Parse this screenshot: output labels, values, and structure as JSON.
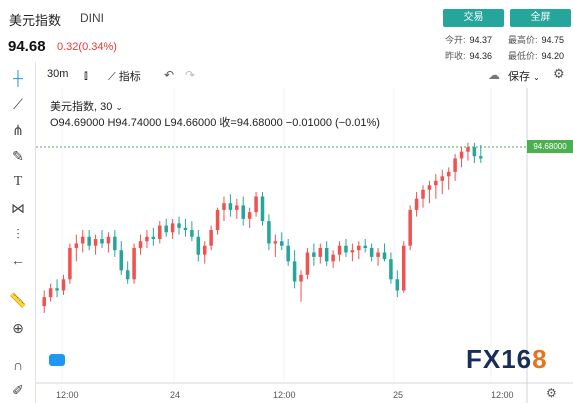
{
  "header": {
    "name": "美元指数",
    "code": "DINI",
    "price": "94.68",
    "change": "0.32(0.34%)",
    "trade_label": "交易",
    "fullscreen_label": "全屏",
    "stats": [
      {
        "label": "今开:",
        "value": "94.37"
      },
      {
        "label": "最高价:",
        "value": "94.75"
      },
      {
        "label": "昨收:",
        "value": "94.36"
      },
      {
        "label": "最低价:",
        "value": "94.20"
      }
    ]
  },
  "toolbar": {
    "interval": "30m",
    "indicator_label": "指标",
    "save_label": "保存"
  },
  "legend": {
    "title": "美元指数, 30",
    "ohlc": "O94.69000  H94.74000  L94.66000  收=94.68000  −0.01000 (−0.01%)"
  },
  "last_price_tag": "94.68000",
  "watermark": {
    "text_main": "FX16",
    "text_accent": "8"
  },
  "xaxis_labels": [
    "12:00",
    "24",
    "12:00",
    "25",
    "12:00"
  ],
  "colors": {
    "up": "#ef5350",
    "down": "#26a69a",
    "accent": "#26a69a",
    "price_line": "#4caf50"
  },
  "chart_data": {
    "type": "candlestick",
    "interval": "30m",
    "ylim": [
      93.9,
      94.95
    ],
    "x_ticks": [
      "12:00",
      "24",
      "12:00",
      "25",
      "12:00"
    ],
    "candles": [
      [
        94.02,
        94.09,
        93.99,
        94.06
      ],
      [
        94.06,
        94.12,
        94.04,
        94.1
      ],
      [
        94.1,
        94.14,
        94.06,
        94.09
      ],
      [
        94.09,
        94.16,
        94.07,
        94.14
      ],
      [
        94.14,
        94.3,
        94.12,
        94.28
      ],
      [
        94.28,
        94.34,
        94.22,
        94.3
      ],
      [
        94.3,
        94.36,
        94.26,
        94.33
      ],
      [
        94.33,
        94.36,
        94.27,
        94.29
      ],
      [
        94.29,
        94.34,
        94.25,
        94.32
      ],
      [
        94.32,
        94.36,
        94.28,
        94.3
      ],
      [
        94.3,
        94.35,
        94.26,
        94.33
      ],
      [
        94.33,
        94.36,
        94.24,
        94.27
      ],
      [
        94.27,
        94.31,
        94.16,
        94.18
      ],
      [
        94.18,
        94.22,
        94.12,
        94.14
      ],
      [
        94.14,
        94.3,
        94.12,
        94.28
      ],
      [
        94.28,
        94.34,
        94.25,
        94.31
      ],
      [
        94.31,
        94.36,
        94.28,
        94.33
      ],
      [
        94.33,
        94.37,
        94.29,
        94.32
      ],
      [
        94.32,
        94.4,
        94.3,
        94.38
      ],
      [
        94.38,
        94.41,
        94.33,
        94.35
      ],
      [
        94.35,
        94.41,
        94.32,
        94.39
      ],
      [
        94.39,
        94.42,
        94.34,
        94.37
      ],
      [
        94.37,
        94.41,
        94.33,
        94.36
      ],
      [
        94.36,
        94.4,
        94.31,
        94.33
      ],
      [
        94.33,
        94.36,
        94.22,
        94.25
      ],
      [
        94.25,
        94.31,
        94.21,
        94.29
      ],
      [
        94.29,
        94.38,
        94.27,
        94.36
      ],
      [
        94.36,
        94.46,
        94.34,
        94.45
      ],
      [
        94.45,
        94.51,
        94.4,
        94.48
      ],
      [
        94.48,
        94.52,
        94.42,
        94.45
      ],
      [
        94.45,
        94.5,
        94.41,
        94.47
      ],
      [
        94.47,
        94.51,
        94.38,
        94.41
      ],
      [
        94.41,
        94.46,
        94.37,
        94.44
      ],
      [
        94.44,
        94.53,
        94.42,
        94.51
      ],
      [
        94.51,
        94.53,
        94.38,
        94.4
      ],
      [
        94.4,
        94.43,
        94.27,
        94.3
      ],
      [
        94.3,
        94.34,
        94.24,
        94.31
      ],
      [
        94.31,
        94.35,
        94.27,
        94.29
      ],
      [
        94.29,
        94.32,
        94.2,
        94.22
      ],
      [
        94.22,
        94.27,
        94.1,
        94.13
      ],
      [
        94.13,
        94.18,
        94.04,
        94.16
      ],
      [
        94.16,
        94.28,
        94.14,
        94.26
      ],
      [
        94.26,
        94.3,
        94.2,
        94.24
      ],
      [
        94.24,
        94.3,
        94.21,
        94.28
      ],
      [
        94.28,
        94.31,
        94.2,
        94.22
      ],
      [
        94.22,
        94.27,
        94.19,
        94.25
      ],
      [
        94.25,
        94.31,
        94.22,
        94.29
      ],
      [
        94.29,
        94.32,
        94.24,
        94.26
      ],
      [
        94.26,
        94.3,
        94.22,
        94.27
      ],
      [
        94.27,
        94.31,
        94.23,
        94.29
      ],
      [
        94.29,
        94.32,
        94.26,
        94.28
      ],
      [
        94.28,
        94.3,
        94.22,
        94.24
      ],
      [
        94.24,
        94.28,
        94.2,
        94.26
      ],
      [
        94.26,
        94.3,
        94.22,
        94.23
      ],
      [
        94.23,
        94.26,
        94.12,
        94.14
      ],
      [
        94.14,
        94.18,
        94.06,
        94.09
      ],
      [
        94.09,
        94.31,
        94.08,
        94.29
      ],
      [
        94.29,
        94.47,
        94.27,
        94.45
      ],
      [
        94.45,
        94.53,
        94.42,
        94.5
      ],
      [
        94.5,
        94.56,
        94.46,
        94.54
      ],
      [
        94.54,
        94.58,
        94.48,
        94.56
      ],
      [
        94.56,
        94.61,
        94.5,
        94.58
      ],
      [
        94.58,
        94.63,
        94.52,
        94.6
      ],
      [
        94.6,
        94.64,
        94.54,
        94.62
      ],
      [
        94.62,
        94.7,
        94.58,
        94.68
      ],
      [
        94.68,
        94.73,
        94.64,
        94.71
      ],
      [
        94.71,
        94.75,
        94.67,
        94.73
      ],
      [
        94.73,
        94.75,
        94.66,
        94.69
      ],
      [
        94.69,
        94.74,
        94.66,
        94.68
      ]
    ]
  }
}
